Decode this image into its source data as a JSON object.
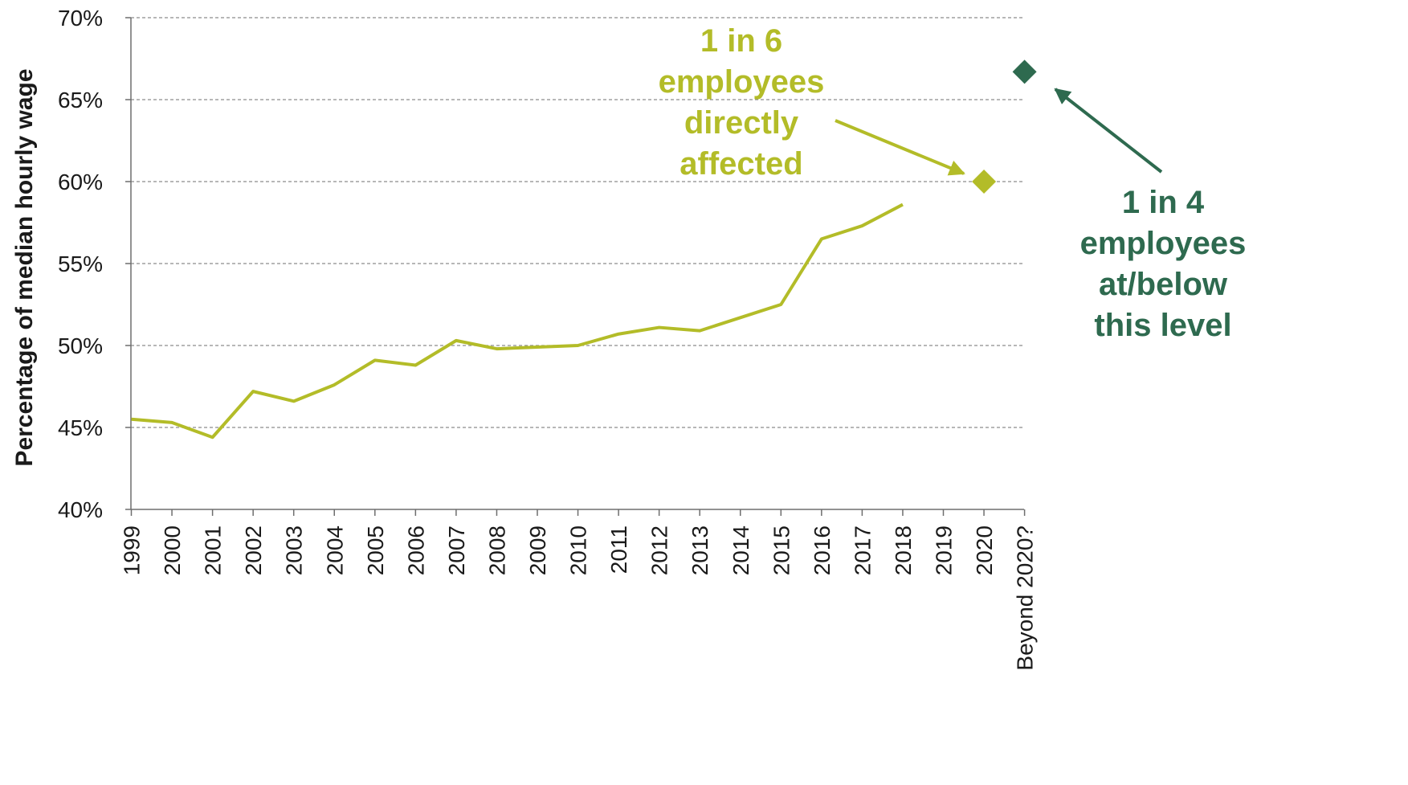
{
  "chart_data": {
    "type": "line",
    "ylabel": "Percentage of median hourly wage",
    "ylim": [
      40,
      70
    ],
    "yticks": [
      40,
      45,
      50,
      55,
      60,
      65,
      70
    ],
    "ytick_format": "%",
    "grid": true,
    "categories": [
      "1999",
      "2000",
      "2001",
      "2002",
      "2003",
      "2004",
      "2005",
      "2006",
      "2007",
      "2008",
      "2009",
      "2010",
      "2011",
      "2012",
      "2013",
      "2014",
      "2015",
      "2016",
      "2017",
      "2018",
      "2019",
      "2020",
      "Beyond 2020?"
    ],
    "series": [
      {
        "values": [
          45.5,
          45.3,
          44.4,
          47.2,
          46.6,
          47.6,
          49.1,
          48.8,
          50.3,
          49.8,
          49.9,
          50.0,
          50.7,
          51.1,
          50.9,
          51.7,
          52.5,
          56.5,
          57.3,
          58.6,
          null,
          null,
          null
        ],
        "color": "#b3bc28"
      }
    ],
    "points": [
      {
        "category": "2020",
        "value": 60,
        "marker": "diamond",
        "color": "#b3bc28"
      },
      {
        "category": "Beyond 2020?",
        "value": 66.7,
        "marker": "diamond",
        "color": "#2e6a4f"
      }
    ],
    "annotations": [
      {
        "lines": [
          "1 in 6",
          "employees",
          "directly",
          "affected"
        ],
        "color": "#b3bc28",
        "points_to": "2020"
      },
      {
        "lines": [
          "1 in 4",
          "employees",
          "at/below",
          "this level"
        ],
        "color": "#2e6a4f",
        "points_to": "Beyond 2020?"
      }
    ],
    "colors": {
      "grid": "#8c8c8c",
      "axis": "#6e6e6e",
      "text": "#1a1a1a"
    }
  }
}
